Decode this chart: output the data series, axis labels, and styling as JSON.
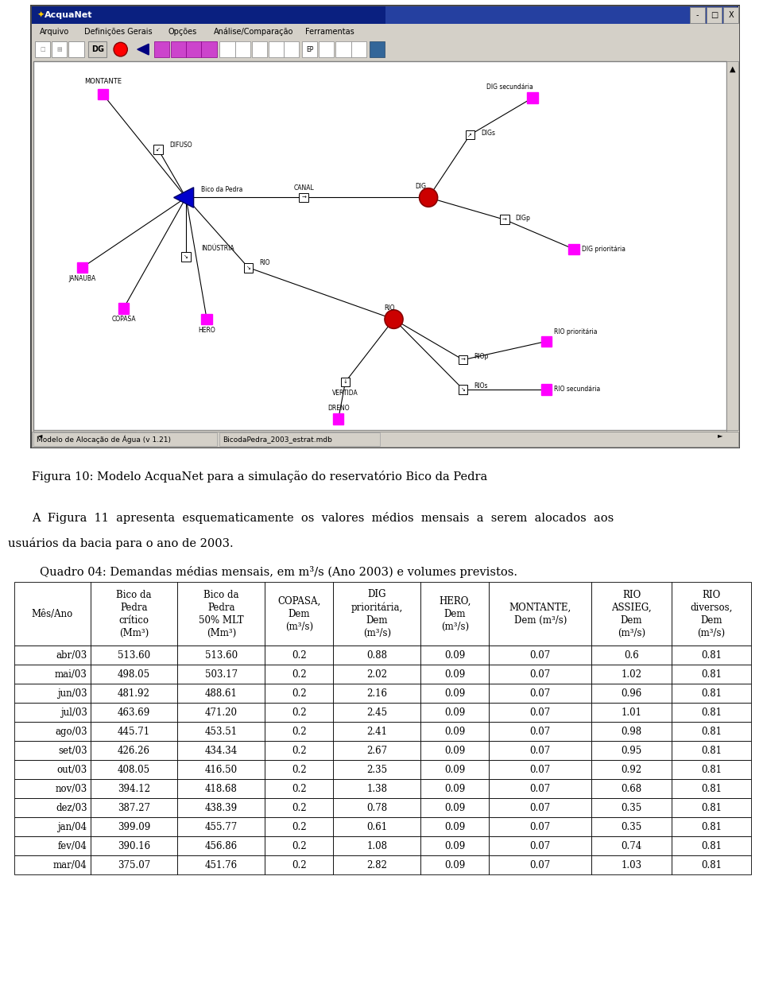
{
  "fig_caption": "Figura 10: Modelo AcquaNet para a simulação do reservatório Bico da Pedra",
  "para_text1": "A  Figura  11  apresenta  esquematicamente  os  valores  médios  mensais  a  serem  alocados  aos",
  "para_text2": "usuários da bacia para o ano de 2003.",
  "table_title": "Quadro 04: Demandas médias mensais, em m³/s (Ano 2003) e volumes previstos.",
  "col_headers": [
    "Mês/Ano",
    "Bico da\nPedra\ncrítico\n(Mm³)",
    "Bico da\nPedra\n50% MLT\n(Mm³)",
    "COPASA,\nDem\n(m³/s)",
    "DIG\nprioritária,\nDem\n(m³/s)",
    "HERO,\nDem\n(m³/s)",
    "MONTANTE,\nDem (m³/s)",
    "RIO\nASSIEG,\nDem\n(m³/s)",
    "RIO\ndiversos,\nDem\n(m³/s)"
  ],
  "rows": [
    [
      "abr/03",
      "513.60",
      "513.60",
      "0.2",
      "0.88",
      "0.09",
      "0.07",
      "0.6",
      "0.81"
    ],
    [
      "mai/03",
      "498.05",
      "503.17",
      "0.2",
      "2.02",
      "0.09",
      "0.07",
      "1.02",
      "0.81"
    ],
    [
      "jun/03",
      "481.92",
      "488.61",
      "0.2",
      "2.16",
      "0.09",
      "0.07",
      "0.96",
      "0.81"
    ],
    [
      "jul/03",
      "463.69",
      "471.20",
      "0.2",
      "2.45",
      "0.09",
      "0.07",
      "1.01",
      "0.81"
    ],
    [
      "ago/03",
      "445.71",
      "453.51",
      "0.2",
      "2.41",
      "0.09",
      "0.07",
      "0.98",
      "0.81"
    ],
    [
      "set/03",
      "426.26",
      "434.34",
      "0.2",
      "2.67",
      "0.09",
      "0.07",
      "0.95",
      "0.81"
    ],
    [
      "out/03",
      "408.05",
      "416.50",
      "0.2",
      "2.35",
      "0.09",
      "0.07",
      "0.92",
      "0.81"
    ],
    [
      "nov/03",
      "394.12",
      "418.68",
      "0.2",
      "1.38",
      "0.09",
      "0.07",
      "0.68",
      "0.81"
    ],
    [
      "dez/03",
      "387.27",
      "438.39",
      "0.2",
      "0.78",
      "0.09",
      "0.07",
      "0.35",
      "0.81"
    ],
    [
      "jan/04",
      "399.09",
      "455.77",
      "0.2",
      "0.61",
      "0.09",
      "0.07",
      "0.35",
      "0.81"
    ],
    [
      "fev/04",
      "390.16",
      "456.86",
      "0.2",
      "1.08",
      "0.09",
      "0.07",
      "0.74",
      "0.81"
    ],
    [
      "mar/04",
      "375.07",
      "451.76",
      "0.2",
      "2.82",
      "0.09",
      "0.07",
      "1.03",
      "0.81"
    ]
  ],
  "window_title": "AcquaNet",
  "status_bar1": "Modelo de Alocação de Água (v 1.21)",
  "status_bar2": "BicodaPedra_2003_estrat.mdb",
  "menu_items": [
    "Arquivo",
    "Definições Gerais",
    "Opções",
    "Análise/Comparação",
    "Ferramentas"
  ],
  "magenta": "#FF00FF",
  "blue_tri": "#0000CC",
  "red_node": "#CC0000",
  "titlebar_color": "#0a2080",
  "bg_gray": "#d4d0c8"
}
